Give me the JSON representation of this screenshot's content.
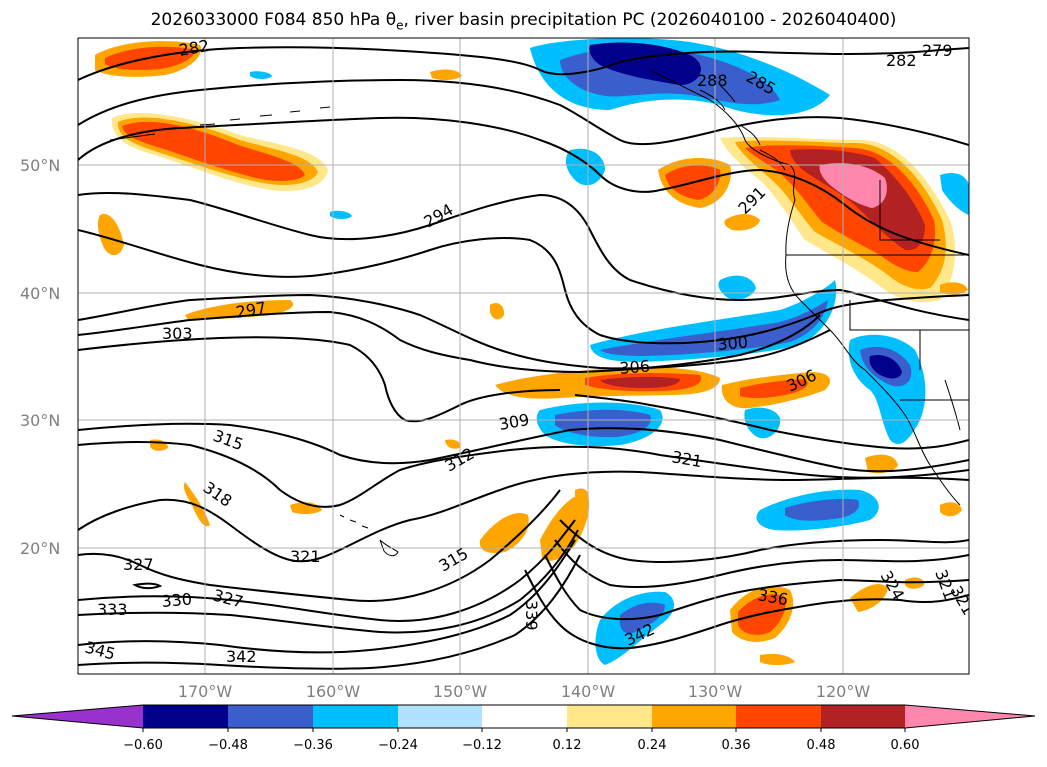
{
  "title": {
    "prefix": "2026033000 F084 850 hPa θ",
    "sub": "e",
    "suffix": ", river basin precipitation PC (2026040100 - 2026040400)"
  },
  "map": {
    "lat_labels": [
      "50°N",
      "40°N",
      "30°N",
      "20°N"
    ],
    "lon_labels": [
      "170°W",
      "160°W",
      "150°W",
      "140°W",
      "130°W",
      "120°W"
    ],
    "contour_labels": [
      "282",
      "282",
      "279",
      "288",
      "285",
      "294",
      "291",
      "297",
      "303",
      "306",
      "300",
      "306",
      "309",
      "312",
      "315",
      "318",
      "321",
      "315",
      "321",
      "327",
      "321",
      "324",
      "321",
      "330",
      "327",
      "333",
      "336",
      "339",
      "342",
      "345",
      "342"
    ]
  },
  "colorbar": {
    "ticks": [
      "−0.60",
      "−0.48",
      "−0.36",
      "−0.24",
      "−0.12",
      "0.12",
      "0.24",
      "0.36",
      "0.48",
      "0.60"
    ],
    "colors": [
      "#9932cc",
      "#00008b",
      "#3a5fcd",
      "#00bfff",
      "#b0e2ff",
      "#ffffff",
      "#ffe78a",
      "#ffa500",
      "#ff4500",
      "#b22222",
      "#ff86ac"
    ]
  }
}
